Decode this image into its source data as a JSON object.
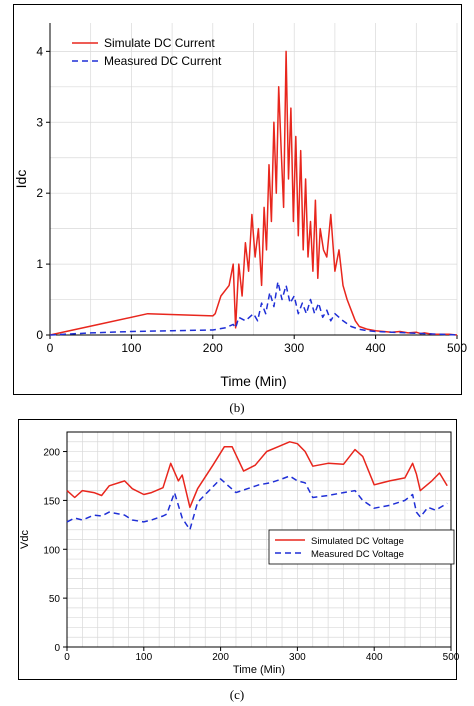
{
  "captions": {
    "b": "(b)",
    "c": "(c)"
  },
  "colors": {
    "simulated": "#e8261d",
    "measured": "#1f2fd6",
    "grid": "#d9d9d9"
  },
  "chart_data": [
    {
      "type": "line",
      "xlabel": "Time (Min)",
      "ylabel": "Idc",
      "xlim": [
        0,
        500
      ],
      "ylim": [
        0,
        4.4
      ],
      "xticks": [
        0,
        100,
        200,
        300,
        400,
        500
      ],
      "yticks": [
        0,
        1,
        2,
        3,
        4
      ],
      "grid": true,
      "legend_position": "top-left",
      "series": [
        {
          "name": "Simulate DC Current",
          "style": "solid",
          "x": [
            0,
            60,
            120,
            200,
            203,
            210,
            220,
            225,
            228,
            232,
            236,
            240,
            244,
            248,
            252,
            256,
            260,
            263,
            266,
            269,
            272,
            275,
            278,
            281,
            284,
            287,
            290,
            293,
            296,
            299,
            302,
            305,
            308,
            311,
            314,
            317,
            320,
            323,
            326,
            329,
            332,
            336,
            340,
            345,
            350,
            355,
            360,
            365,
            370,
            375,
            380,
            390,
            400,
            410,
            420,
            430,
            440,
            450,
            455,
            460,
            470,
            480,
            490,
            500
          ],
          "y": [
            0,
            0.15,
            0.3,
            0.27,
            0.3,
            0.55,
            0.7,
            1.0,
            0.1,
            1.0,
            0.55,
            1.3,
            0.9,
            1.7,
            1.1,
            1.5,
            0.7,
            1.8,
            1.2,
            2.4,
            1.6,
            3.0,
            2.0,
            3.5,
            2.6,
            1.8,
            4.0,
            2.2,
            3.2,
            1.6,
            2.8,
            1.4,
            2.6,
            1.2,
            2.2,
            1.1,
            1.6,
            0.9,
            1.9,
            0.8,
            1.5,
            1.2,
            1.1,
            1.7,
            0.9,
            1.2,
            0.7,
            0.5,
            0.35,
            0.2,
            0.12,
            0.08,
            0.06,
            0.05,
            0.04,
            0.05,
            0.03,
            0.04,
            0.02,
            0.03,
            0.01,
            0.01,
            0.01,
            0.0
          ]
        },
        {
          "name": "Measured DC Current",
          "style": "dashed",
          "x": [
            0,
            50,
            100,
            150,
            200,
            215,
            225,
            228,
            232,
            240,
            250,
            255,
            260,
            265,
            270,
            275,
            280,
            285,
            290,
            295,
            300,
            305,
            310,
            315,
            320,
            325,
            330,
            335,
            340,
            345,
            350,
            360,
            370,
            380,
            390,
            400,
            420,
            440,
            460,
            480,
            500
          ],
          "y": [
            0,
            0.03,
            0.05,
            0.06,
            0.07,
            0.1,
            0.15,
            0.1,
            0.25,
            0.2,
            0.3,
            0.2,
            0.45,
            0.3,
            0.6,
            0.4,
            0.75,
            0.5,
            0.7,
            0.45,
            0.55,
            0.3,
            0.45,
            0.3,
            0.5,
            0.3,
            0.45,
            0.25,
            0.35,
            0.2,
            0.3,
            0.2,
            0.12,
            0.08,
            0.06,
            0.05,
            0.04,
            0.03,
            0.02,
            0.01,
            0.0
          ]
        }
      ]
    },
    {
      "type": "line",
      "xlabel": "Time (Min)",
      "ylabel": "Vdc",
      "xlim": [
        0,
        500
      ],
      "ylim": [
        0,
        220
      ],
      "xticks": [
        0,
        100,
        200,
        300,
        400,
        500
      ],
      "yticks": [
        0,
        50,
        100,
        150,
        200
      ],
      "grid": true,
      "legend_position": "center-right",
      "series": [
        {
          "name": "Simulated DC Voltage",
          "style": "solid",
          "x": [
            0,
            10,
            20,
            35,
            45,
            55,
            75,
            85,
            100,
            110,
            125,
            135,
            145,
            150,
            160,
            170,
            190,
            205,
            215,
            230,
            245,
            260,
            275,
            290,
            300,
            310,
            320,
            340,
            360,
            375,
            385,
            400,
            420,
            440,
            450,
            455,
            460,
            475,
            485,
            495
          ],
          "y": [
            160,
            153,
            160,
            158,
            155,
            165,
            170,
            162,
            156,
            158,
            163,
            188,
            170,
            176,
            143,
            162,
            186,
            205,
            205,
            180,
            186,
            200,
            205,
            210,
            208,
            200,
            185,
            188,
            187,
            202,
            195,
            166,
            170,
            173,
            188,
            177,
            160,
            170,
            178,
            165
          ]
        },
        {
          "name": "Measured DC Voltage",
          "style": "dashed",
          "x": [
            0,
            10,
            20,
            35,
            45,
            55,
            75,
            85,
            100,
            110,
            125,
            130,
            140,
            150,
            155,
            160,
            170,
            185,
            200,
            210,
            220,
            235,
            250,
            265,
            280,
            290,
            300,
            310,
            320,
            340,
            360,
            375,
            385,
            400,
            420,
            440,
            450,
            455,
            460,
            470,
            480,
            495
          ],
          "y": [
            128,
            132,
            130,
            135,
            134,
            138,
            135,
            130,
            128,
            130,
            134,
            136,
            158,
            132,
            126,
            120,
            148,
            160,
            172,
            165,
            158,
            162,
            166,
            168,
            172,
            175,
            170,
            168,
            153,
            155,
            158,
            160,
            150,
            142,
            145,
            150,
            156,
            138,
            133,
            143,
            140,
            147
          ]
        }
      ]
    }
  ]
}
